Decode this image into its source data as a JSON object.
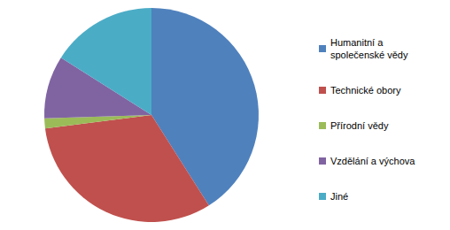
{
  "chart_data": {
    "type": "pie",
    "categories": [
      "Humanitní a společenské vědy",
      "Technické obory",
      "Přírodní vědy",
      "Vzdělání a výchova",
      "Jiné"
    ],
    "values": [
      41,
      32,
      1.5,
      9.5,
      16
    ],
    "colors": [
      "#4f81bd",
      "#c0504d",
      "#9bbb59",
      "#8064a2",
      "#4bacc6"
    ],
    "legend": "right"
  }
}
